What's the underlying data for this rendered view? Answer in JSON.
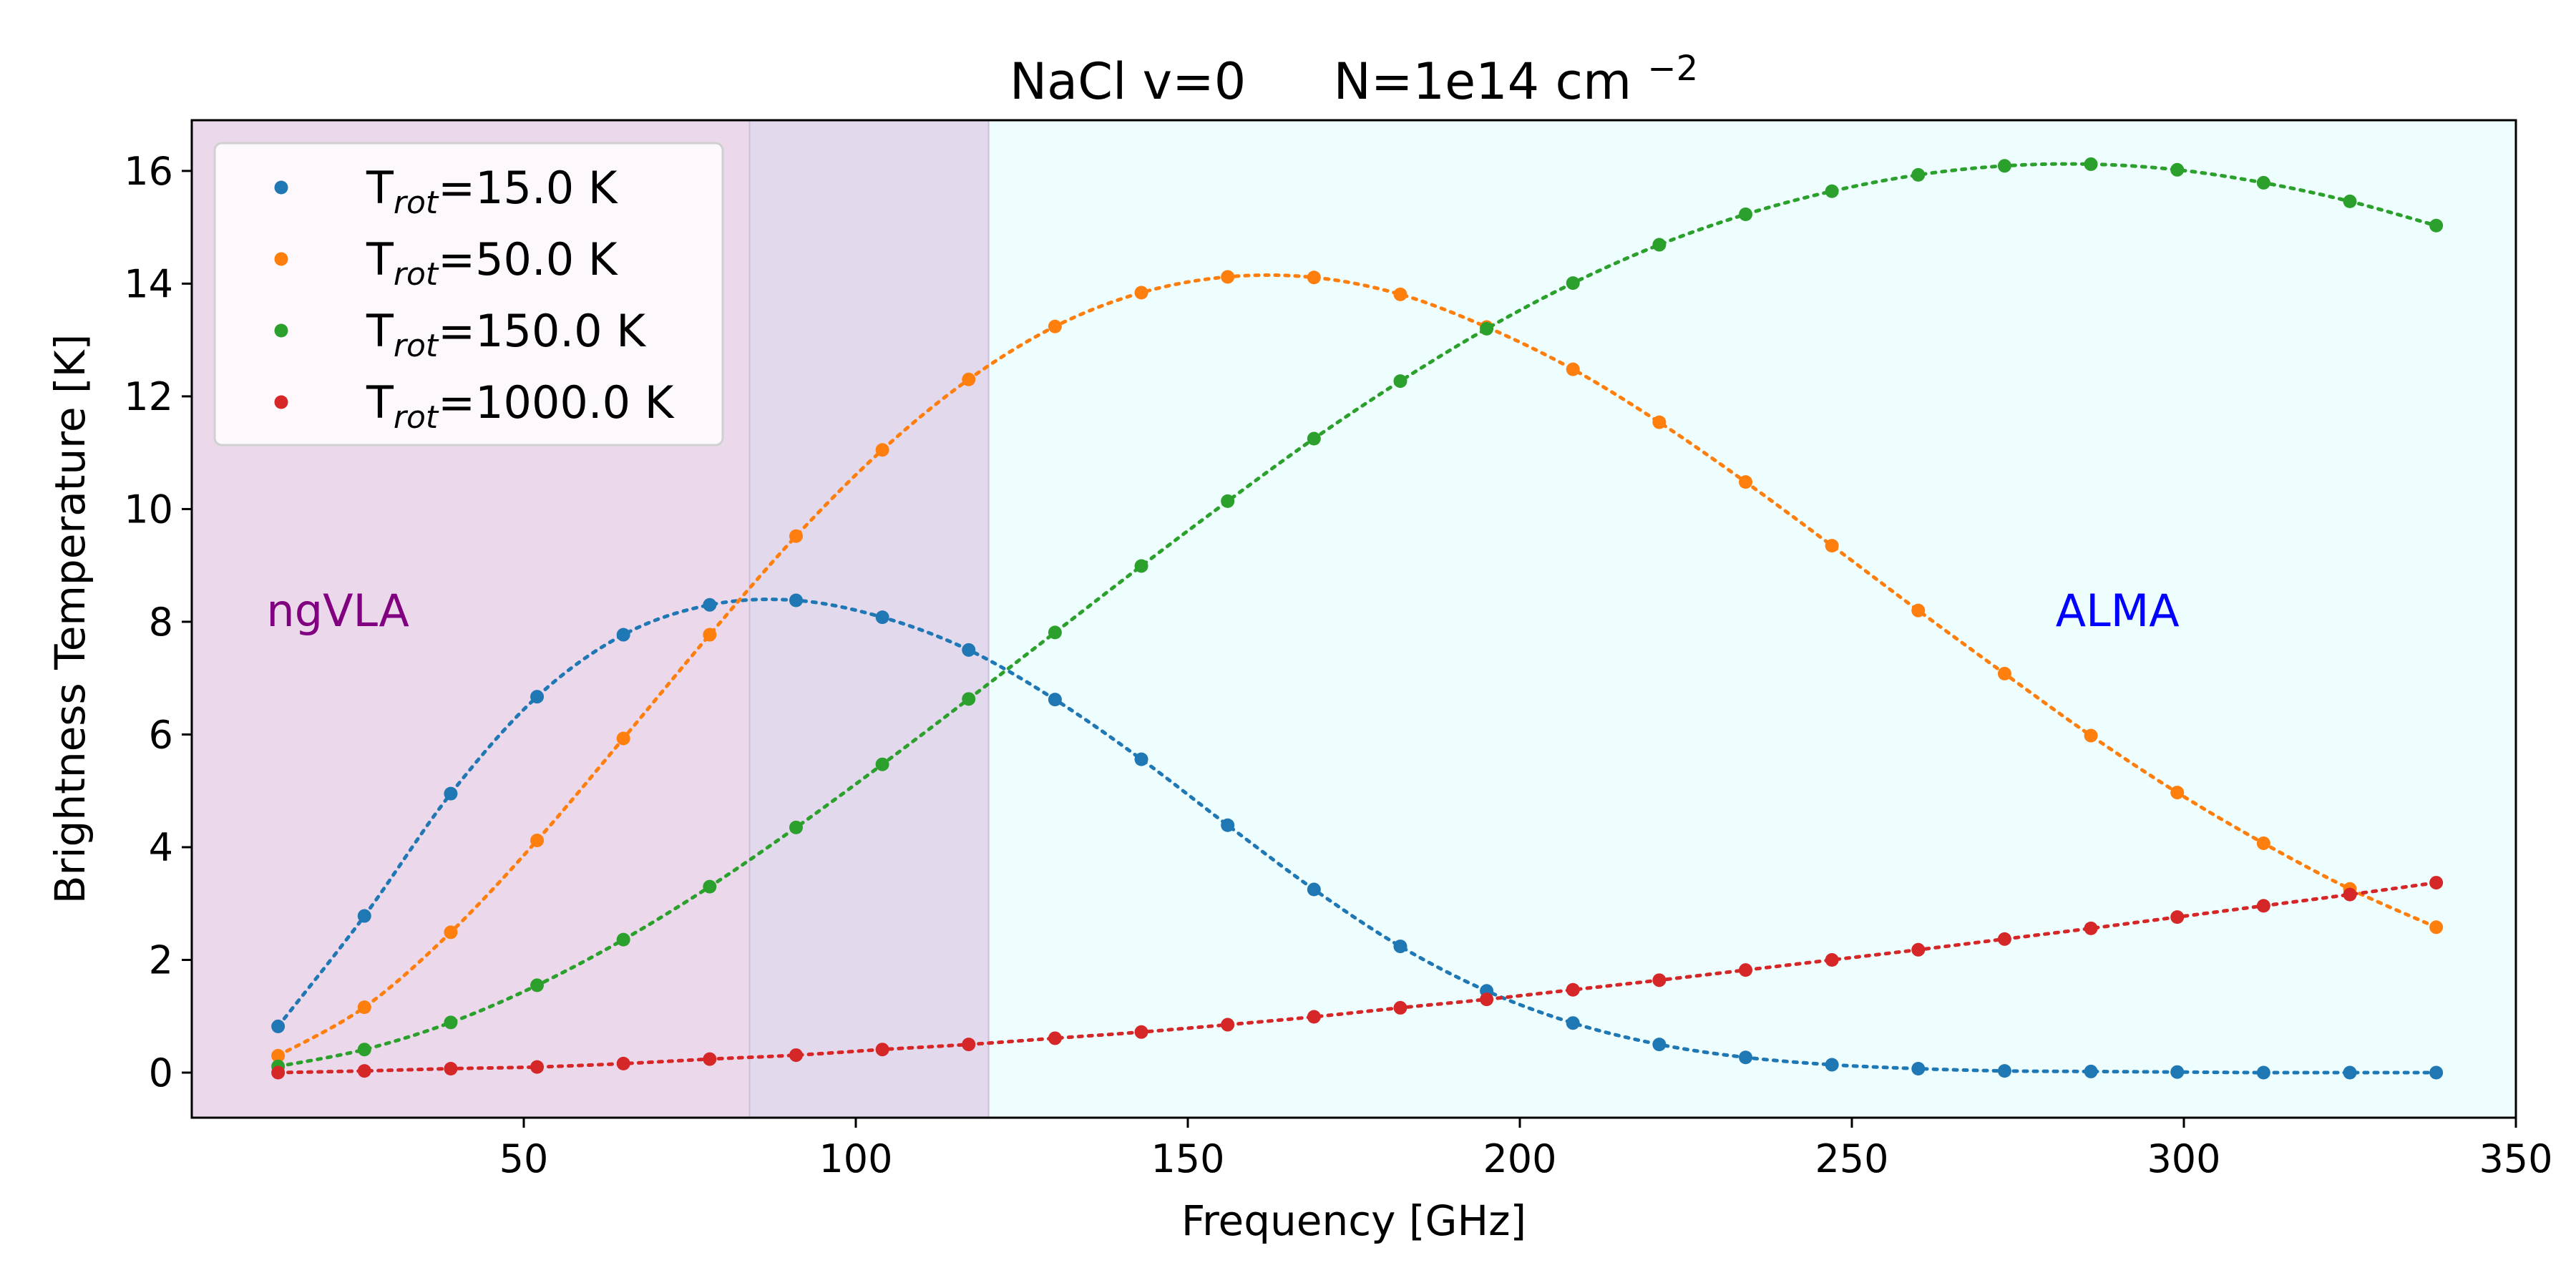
{
  "chart_data": {
    "type": "line",
    "title": {
      "main": "NaCl v=0",
      "col": "N=1e14 cm",
      "sup": "−2"
    },
    "xlabel": "Frequency [GHz]",
    "ylabel": "Brightness Temperature [K]",
    "xlim": [
      0,
      350
    ],
    "ylim": [
      -0.8,
      16.9
    ],
    "xticks": [
      50,
      100,
      150,
      200,
      250,
      300,
      350
    ],
    "yticks": [
      0,
      2,
      4,
      6,
      8,
      10,
      12,
      14,
      16
    ],
    "grid": false,
    "legend_position": "top-left",
    "x": [
      13,
      26,
      39,
      52,
      65,
      78,
      91,
      104,
      117,
      130,
      143,
      156,
      169,
      182,
      195,
      208,
      221,
      234,
      247,
      260,
      273,
      286,
      299,
      312,
      325,
      338
    ],
    "series": [
      {
        "name": {
          "pre": "T",
          "sub": "rot",
          "post": "=15.0 K"
        },
        "color": "#1f77b4",
        "values": [
          0.82,
          2.78,
          4.95,
          6.67,
          7.77,
          8.3,
          8.38,
          8.08,
          7.5,
          6.62,
          5.56,
          4.39,
          3.25,
          2.24,
          1.45,
          0.88,
          0.5,
          0.27,
          0.14,
          0.07,
          0.03,
          0.02,
          0.01,
          0.0,
          0.0,
          0.0
        ]
      },
      {
        "name": {
          "pre": "T",
          "sub": "rot",
          "post": "=50.0 K"
        },
        "color": "#ff7f0e",
        "values": [
          0.3,
          1.16,
          2.49,
          4.12,
          5.93,
          7.77,
          9.52,
          11.05,
          12.3,
          13.24,
          13.84,
          14.12,
          14.11,
          13.81,
          13.23,
          12.48,
          11.54,
          10.48,
          9.35,
          8.2,
          7.08,
          5.98,
          4.97,
          4.07,
          3.26,
          2.58
        ]
      },
      {
        "name": {
          "pre": "T",
          "sub": "rot",
          "post": "=150.0 K"
        },
        "color": "#2ca02c",
        "values": [
          0.11,
          0.41,
          0.89,
          1.55,
          2.36,
          3.3,
          4.35,
          5.47,
          6.63,
          7.81,
          8.99,
          10.14,
          11.25,
          12.27,
          13.2,
          14.01,
          14.69,
          15.23,
          15.64,
          15.93,
          16.09,
          16.12,
          16.02,
          15.79,
          15.46,
          15.03
        ]
      },
      {
        "name": {
          "pre": "T",
          "sub": "rot",
          "post": "=1000.0 K"
        },
        "color": "#d62728",
        "values": [
          0.0,
          0.03,
          0.07,
          0.1,
          0.16,
          0.24,
          0.31,
          0.41,
          0.5,
          0.61,
          0.72,
          0.85,
          0.99,
          1.15,
          1.3,
          1.47,
          1.64,
          1.82,
          2.0,
          2.18,
          2.37,
          2.56,
          2.76,
          2.96,
          3.16,
          3.37
        ]
      }
    ],
    "regions": [
      {
        "label": "ngVLA",
        "x_range": [
          0,
          120
        ],
        "fill": "#ebd9eb",
        "text_color": "#800080"
      },
      {
        "label": "ALMA",
        "x_range": [
          84,
          350
        ],
        "fill": "#eefdfd",
        "text_color": "#0000ff"
      }
    ],
    "overlap_fill": "#e2d9ec"
  }
}
